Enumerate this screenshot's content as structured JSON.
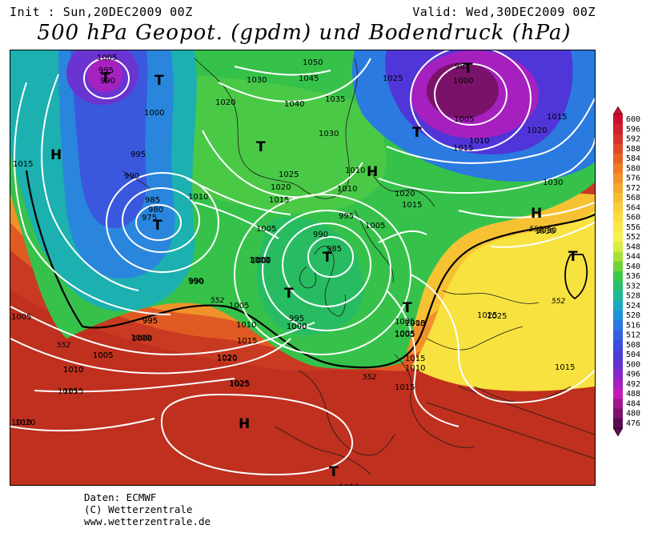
{
  "header": {
    "init": "Init : Sun,20DEC2009 00Z",
    "valid": "Valid: Wed,30DEC2009 00Z",
    "title": "500 hPa Geopot. (gpdm) und Bodendruck (hPa)"
  },
  "credits": {
    "line1": "Daten: ECMWF",
    "line2": "(C) Wetterzentrale",
    "line3": "www.wetterzentrale.de"
  },
  "colorscale": {
    "levels": [
      600,
      596,
      592,
      588,
      584,
      580,
      576,
      572,
      568,
      564,
      560,
      556,
      552,
      548,
      544,
      540,
      536,
      532,
      528,
      524,
      520,
      516,
      512,
      508,
      504,
      500,
      496,
      492,
      488,
      484,
      480,
      476
    ],
    "colors": [
      "#c8102e",
      "#d01e2c",
      "#d8302a",
      "#e04a28",
      "#e86226",
      "#ee7a26",
      "#f2922a",
      "#f4a830",
      "#f6bc34",
      "#f8ce3a",
      "#fadc40",
      "#fae84a",
      "#f6f050",
      "#d8ec44",
      "#a8e03a",
      "#6ed23a",
      "#3cc84a",
      "#28c070",
      "#1cb898",
      "#18a8c0",
      "#2090d8",
      "#2a78e0",
      "#3460e0",
      "#3c4ce0",
      "#4a3ed8",
      "#6432d0",
      "#8628c8",
      "#a420c0",
      "#c41cb8",
      "#a01890",
      "#7c126c",
      "#5a0c50"
    ]
  },
  "map": {
    "highs": [
      "H",
      "H",
      "H",
      "H"
    ],
    "lows": [
      "T",
      "T",
      "T",
      "T",
      "T",
      "T",
      "T",
      "T",
      "T",
      "T",
      "T"
    ],
    "isobar_labels": [
      "1005",
      "995",
      "990",
      "1030",
      "1050",
      "1045",
      "1040",
      "1035",
      "1025",
      "985",
      "1000",
      "1020",
      "1015",
      "1030",
      "1025",
      "1020",
      "1015",
      "1010",
      "1000",
      "1005",
      "1015",
      "1010",
      "1005",
      "1010",
      "1020",
      "1000",
      "1010",
      "995",
      "1005",
      "1025",
      "1015",
      "1020",
      "1030",
      "1010",
      "1015",
      "1005",
      "1025",
      "995",
      "1005",
      "1000",
      "980",
      "975",
      "985",
      "990",
      "995",
      "1000",
      "1015",
      "1020",
      "1025",
      "1010",
      "1000",
      "990",
      "990",
      "985",
      "1000",
      "995",
      "1020",
      "1015",
      "1005",
      "1025",
      "1015",
      "1010",
      "1005",
      "1015",
      "1025",
      "1020",
      "1010",
      "1005",
      "1000",
      "1030",
      "1010",
      "1030",
      "1005",
      "1015",
      "1020",
      "1025",
      "990",
      "995",
      "1000",
      "1010",
      "1005",
      "1000",
      "1015",
      "1005"
    ],
    "geopot_labels": [
      "552",
      "552",
      "552",
      "552",
      "552"
    ]
  }
}
